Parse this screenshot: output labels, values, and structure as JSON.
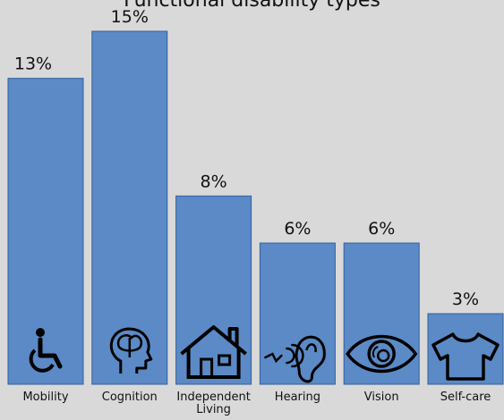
{
  "chart_data": {
    "type": "bar",
    "title": "Functional disability types",
    "categories": [
      "Mobility",
      "Cognition",
      "Independent Living",
      "Hearing",
      "Vision",
      "Self-care"
    ],
    "values": [
      13,
      15,
      8,
      6,
      6,
      3
    ],
    "value_labels": [
      "13%",
      "15%",
      "8%",
      "6%",
      "6%",
      "3%"
    ],
    "icons": [
      "wheelchair-icon",
      "brain-head-icon",
      "house-icon",
      "ear-icon",
      "eye-icon",
      "tshirt-icon"
    ],
    "ylim": [
      0,
      15
    ],
    "grid": false,
    "bar_color": "#5b8ac6",
    "bar_edge_color": "#2f5f9f",
    "background": "#d9d9d9"
  }
}
